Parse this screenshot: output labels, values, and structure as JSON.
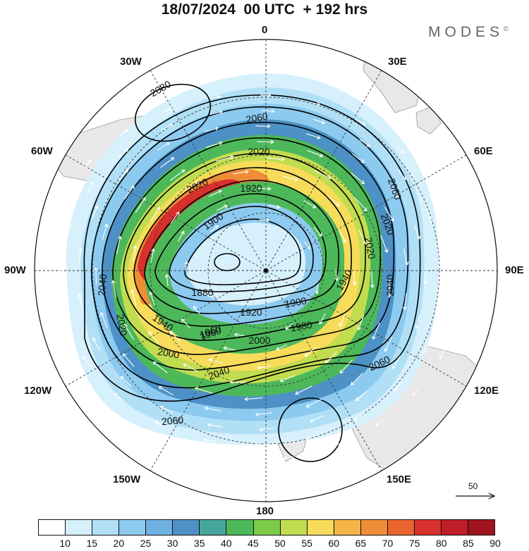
{
  "title": "18/07/2024  00 UTC  + 192 hrs",
  "logo": {
    "text": "MODES",
    "mark": "©"
  },
  "map": {
    "projection": "south-polar-stereographic",
    "longitude_labels": {
      "top": "0",
      "bottom": "180",
      "left": "90W",
      "right": "90E",
      "upper_left_30": "30W",
      "upper_right_30": "30E",
      "upper_left_60": "60W",
      "upper_right_60": "60E",
      "lower_left_120": "120W",
      "lower_right_120": "120E",
      "lower_left_150": "150W",
      "lower_right_150": "150E"
    },
    "contour_labels": [
      "2080",
      "2060",
      "2060",
      "2060",
      "2060",
      "2020",
      "2020",
      "2020",
      "1920",
      "1900",
      "1880",
      "1920",
      "1900",
      "1940",
      "1940",
      "1960",
      "1980",
      "2000",
      "2000",
      "2040",
      "2040",
      "2040",
      "2020",
      "2020",
      "1960"
    ],
    "colors": {
      "land": "#e8e8e8",
      "background": "#ffffff",
      "vectors": "#ffffff",
      "contours": "#000000"
    }
  },
  "vector_reference": {
    "label": "50"
  },
  "colorbar": {
    "ticks": [
      "10",
      "15",
      "20",
      "25",
      "30",
      "35",
      "40",
      "45",
      "50",
      "55",
      "60",
      "65",
      "70",
      "75",
      "80",
      "85",
      "90"
    ],
    "colors": [
      "#ffffff",
      "#d6f0fc",
      "#b1e0f6",
      "#8ccaf0",
      "#6eb0e0",
      "#4d91c6",
      "#45a69b",
      "#4db85a",
      "#7ccc4a",
      "#c2dc50",
      "#f6dc5a",
      "#f5b447",
      "#ef8c36",
      "#ea6430",
      "#d8302c",
      "#be1e28",
      "#a0141e"
    ]
  }
}
